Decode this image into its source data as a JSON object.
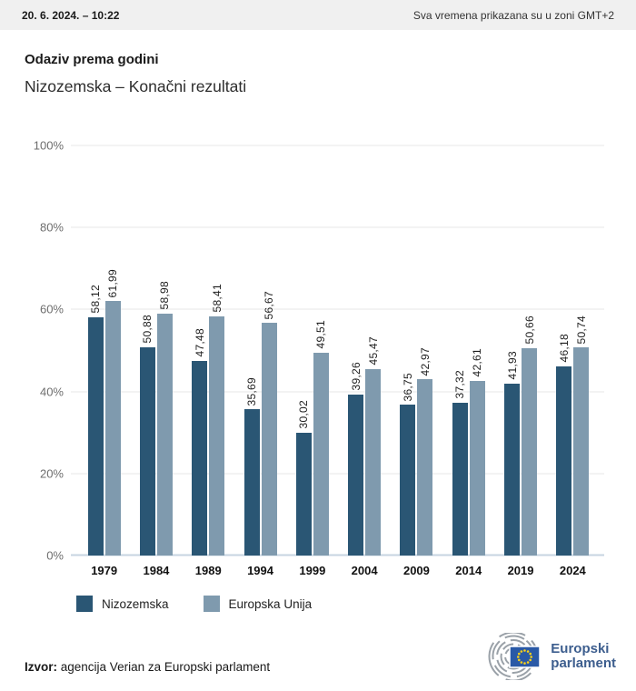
{
  "header": {
    "date": "20. 6. 2024. – 10:22",
    "timezone_note": "Sva vremena prikazana su u zoni GMT+2"
  },
  "titles": {
    "title": "Odaziv prema godini",
    "subtitle": "Nizozemska – Konačni rezultati"
  },
  "chart_data": {
    "type": "bar",
    "title": "Odaziv prema godini",
    "subtitle": "Nizozemska – Konačni rezultati",
    "categories": [
      "1979",
      "1984",
      "1989",
      "1994",
      "1999",
      "2004",
      "2009",
      "2014",
      "2019",
      "2024"
    ],
    "series": [
      {
        "name": "Nizozemska",
        "color": "#2a5674",
        "values": [
          58.12,
          50.88,
          47.48,
          35.69,
          30.02,
          39.26,
          36.75,
          37.32,
          41.93,
          46.18
        ],
        "display": [
          "58,12",
          "50,88",
          "47,48",
          "35,69",
          "30,02",
          "39,26",
          "36,75",
          "37,32",
          "41,93",
          "46,18"
        ]
      },
      {
        "name": "Europska Unija",
        "color": "#7f9aae",
        "values": [
          61.99,
          58.98,
          58.41,
          56.67,
          49.51,
          45.47,
          42.97,
          42.61,
          50.66,
          50.74
        ],
        "display": [
          "61,99",
          "58,98",
          "58,41",
          "56,67",
          "49,51",
          "45,47",
          "42,97",
          "42,61",
          "50,66",
          "50,74"
        ]
      }
    ],
    "xlabel": "",
    "ylabel": "",
    "ylim": [
      0,
      100
    ],
    "grid": true,
    "legend_position": "bottom",
    "y_ticks": [
      {
        "value": 0,
        "label": "0%"
      },
      {
        "value": 20,
        "label": "20%"
      },
      {
        "value": 40,
        "label": "40%"
      },
      {
        "value": 60,
        "label": "60%"
      },
      {
        "value": 80,
        "label": "80%"
      },
      {
        "value": 100,
        "label": "100%"
      }
    ],
    "value_label_rotation_deg": 90,
    "baseline_color": "#c7d4e1"
  },
  "footer": {
    "source_label": "Izvor:",
    "source_text": " agencija Verian za Europski parlament",
    "logo": {
      "line1": "Europski",
      "line2": "parlament",
      "text_color": "#3d5e8e",
      "hemicycle_color": "#9aa1a8",
      "flag_blue": "#2a59a6",
      "star_yellow": "#fbd117"
    }
  }
}
